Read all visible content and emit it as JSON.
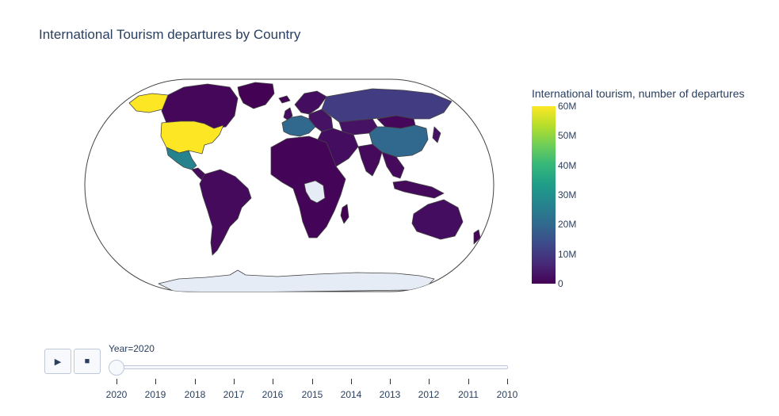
{
  "title": "International Tourism departures by Country",
  "colorbar": {
    "title": "International tourism, number of departures",
    "ticks": [
      "60M",
      "50M",
      "40M",
      "30M",
      "20M",
      "10M",
      "0"
    ],
    "tick_values": [
      60000000,
      50000000,
      40000000,
      30000000,
      20000000,
      10000000,
      0
    ],
    "colorscale": [
      "#440154",
      "#482878",
      "#3e4989",
      "#31688e",
      "#26828e",
      "#1f9e89",
      "#35b779",
      "#6ece58",
      "#b5de2b",
      "#fde725"
    ]
  },
  "controls": {
    "play_icon": "play-icon",
    "stop_icon": "stop-icon",
    "play_glyph": "▶",
    "stop_glyph": "■"
  },
  "slider": {
    "current_label": "Year=2020",
    "steps": [
      "2020",
      "2019",
      "2018",
      "2017",
      "2016",
      "2015",
      "2014",
      "2013",
      "2012",
      "2011",
      "2010"
    ],
    "active_index": 0
  },
  "map": {
    "projection": "natural earth",
    "year": 2020,
    "colors": {
      "land_no_data": "#e5ecf6",
      "border": "#444444",
      "frame": "#444444"
    },
    "regions": [
      {
        "name": "United States",
        "value": 60000000
      },
      {
        "name": "Alaska",
        "value": 60000000
      },
      {
        "name": "Canada",
        "value": 1000000
      },
      {
        "name": "Mexico",
        "value": 27000000
      },
      {
        "name": "Central America",
        "value": 1500000
      },
      {
        "name": "South America",
        "value": 1500000
      },
      {
        "name": "Greenland",
        "value": 100000
      },
      {
        "name": "Iceland",
        "value": 500000
      },
      {
        "name": "United Kingdom",
        "value": 2000000
      },
      {
        "name": "Scandinavia",
        "value": 2000000
      },
      {
        "name": "Western Europe",
        "value": 20000000
      },
      {
        "name": "Eastern Europe",
        "value": 3000000
      },
      {
        "name": "Russia",
        "value": 11000000
      },
      {
        "name": "Kazakhstan",
        "value": 3000000
      },
      {
        "name": "Mongolia",
        "value": 1000000
      },
      {
        "name": "China",
        "value": 20000000
      },
      {
        "name": "Middle East",
        "value": 2000000
      },
      {
        "name": "India",
        "value": 1500000
      },
      {
        "name": "Southeast Asia",
        "value": 1500000
      },
      {
        "name": "Japan",
        "value": 3000000
      },
      {
        "name": "Indonesia",
        "value": 1500000
      },
      {
        "name": "Australia",
        "value": 2000000
      },
      {
        "name": "New Zealand",
        "value": 500000
      },
      {
        "name": "Africa",
        "value": 500000
      },
      {
        "name": "Madagascar",
        "value": 200000
      }
    ]
  }
}
